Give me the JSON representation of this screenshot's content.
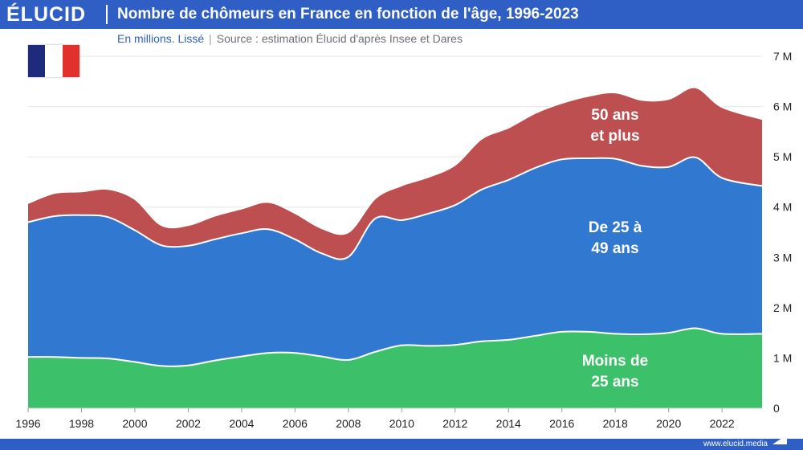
{
  "brand": {
    "logo": "ÉLUCID",
    "footer": "www.elucid.media"
  },
  "header": {
    "title": "Nombre de chômeurs en France en fonction de l'âge, 1996-2023",
    "unit": "En millions. Lissé",
    "source": "Source : estimation Élucid d'après Insee et Dares"
  },
  "flag": {
    "colors": [
      "#1e2b7d",
      "#ffffff",
      "#e2312c"
    ]
  },
  "chart_data": {
    "type": "area",
    "stacked": true,
    "x": [
      1996,
      1997,
      1998,
      1999,
      2000,
      2001,
      2002,
      2003,
      2004,
      2005,
      2006,
      2007,
      2008,
      2009,
      2010,
      2011,
      2012,
      2013,
      2014,
      2015,
      2016,
      2017,
      2018,
      2019,
      2020,
      2021,
      2022,
      2023.5
    ],
    "xlim": [
      1996,
      2023.5
    ],
    "xticks": [
      "1996",
      "1998",
      "2000",
      "2002",
      "2004",
      "2006",
      "2008",
      "2010",
      "2012",
      "2014",
      "2016",
      "2018",
      "2020",
      "2022"
    ],
    "ylim": [
      0,
      7
    ],
    "yticks": [
      "0",
      "1 M",
      "2 M",
      "3 M",
      "4 M",
      "5 M",
      "6 M",
      "7 M"
    ],
    "grid": true,
    "series": [
      {
        "name": "Moins de 25 ans",
        "color": "#3cc069",
        "values": [
          1.02,
          1.02,
          1.0,
          0.99,
          0.92,
          0.84,
          0.85,
          0.95,
          1.03,
          1.1,
          1.1,
          1.03,
          0.96,
          1.12,
          1.25,
          1.24,
          1.26,
          1.33,
          1.36,
          1.44,
          1.52,
          1.52,
          1.48,
          1.47,
          1.5,
          1.59,
          1.48,
          1.48
        ]
      },
      {
        "name": "De 25 à 49 ans",
        "color": "#3178d1",
        "values": [
          2.68,
          2.8,
          2.84,
          2.81,
          2.62,
          2.4,
          2.38,
          2.41,
          2.45,
          2.46,
          2.26,
          2.05,
          2.05,
          2.65,
          2.49,
          2.63,
          2.78,
          3.02,
          3.18,
          3.34,
          3.43,
          3.45,
          3.48,
          3.35,
          3.3,
          3.4,
          3.1,
          2.94
        ]
      },
      {
        "name": "50 ans et plus",
        "color": "#bd4f50",
        "values": [
          0.38,
          0.46,
          0.47,
          0.56,
          0.62,
          0.4,
          0.41,
          0.47,
          0.49,
          0.54,
          0.52,
          0.5,
          0.49,
          0.4,
          0.69,
          0.73,
          0.8,
          1.01,
          1.04,
          1.09,
          1.12,
          1.24,
          1.32,
          1.31,
          1.35,
          1.39,
          1.41,
          1.33
        ]
      }
    ]
  }
}
